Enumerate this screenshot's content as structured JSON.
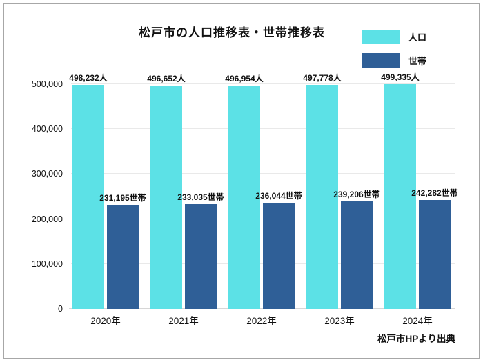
{
  "title": "松戸市の人口推移表・世帯推移表",
  "source_note": "松戸市HPより出典",
  "legend": {
    "items": [
      {
        "label": "人口",
        "color": "#5CE1E6"
      },
      {
        "label": "世帯",
        "color": "#2F5F97"
      }
    ]
  },
  "colors": {
    "population_bar": "#5CE1E6",
    "household_bar": "#2F5F97",
    "gridline": "#e9e9e9",
    "frame_border": "#a7a7a7",
    "text": "#111111"
  },
  "chart_data": {
    "type": "bar",
    "title": "松戸市の人口推移表・世帯推移表",
    "categories": [
      "2020年",
      "2021年",
      "2022年",
      "2023年",
      "2024年"
    ],
    "series": [
      {
        "name": "人口",
        "color": "#5CE1E6",
        "values": [
          498232,
          496652,
          496954,
          497778,
          499335
        ],
        "data_labels": [
          "498,232人",
          "496,652人",
          "496,954人",
          "497,778人",
          "499,335人"
        ]
      },
      {
        "name": "世帯",
        "color": "#2F5F97",
        "values": [
          231195,
          233035,
          236044,
          239206,
          242282
        ],
        "data_labels": [
          "231,195世帯",
          "233,035世帯",
          "236,044世帯",
          "239,206世帯",
          "242,282世帯"
        ]
      }
    ],
    "xlabel": "",
    "ylabel": "",
    "ylim": [
      0,
      500000
    ],
    "yticks": [
      {
        "value": 0,
        "label": "0"
      },
      {
        "value": 100000,
        "label": "100,000"
      },
      {
        "value": 200000,
        "label": "200,000"
      },
      {
        "value": 300000,
        "label": "300,000"
      },
      {
        "value": 400000,
        "label": "400,000"
      },
      {
        "value": 500000,
        "label": "500,000"
      }
    ],
    "grid": true,
    "legend_position": "top-right",
    "annotation": "松戸市HPより出典"
  }
}
